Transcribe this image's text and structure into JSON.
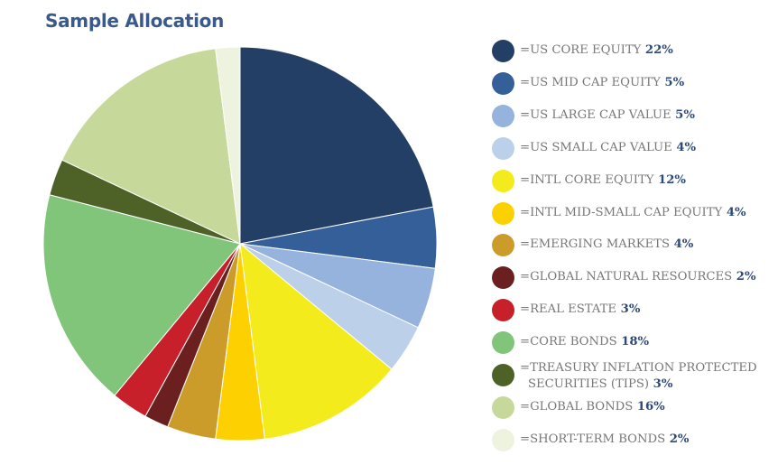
{
  "title": "Sample Allocation",
  "chart_data": {
    "type": "pie",
    "title": "Sample Allocation",
    "legend_position": "right",
    "slices": [
      {
        "label": "US CORE EQUITY",
        "value": 22,
        "value_label": "22%",
        "color": "#233f65"
      },
      {
        "label": "US MID CAP EQUITY",
        "value": 5,
        "value_label": "5%",
        "color": "#355f98"
      },
      {
        "label": "US LARGE CAP VALUE",
        "value": 5,
        "value_label": "5%",
        "color": "#95b3dc"
      },
      {
        "label": "US SMALL CAP VALUE",
        "value": 4,
        "value_label": "4%",
        "color": "#bcd0ea"
      },
      {
        "label": "INTL CORE EQUITY",
        "value": 12,
        "value_label": "12%",
        "color": "#f3eb1c"
      },
      {
        "label": "INTL MID-SMALL CAP EQUITY",
        "value": 4,
        "value_label": "4%",
        "color": "#fdd101"
      },
      {
        "label": "EMERGING MARKETS",
        "value": 4,
        "value_label": "4%",
        "color": "#cc9c2a"
      },
      {
        "label": "GLOBAL NATURAL RESOURCES",
        "value": 2,
        "value_label": "2%",
        "color": "#6b1f1f"
      },
      {
        "label": "REAL ESTATE",
        "value": 3,
        "value_label": "3%",
        "color": "#c8202a"
      },
      {
        "label": "CORE BONDS",
        "value": 18,
        "value_label": "18%",
        "color": "#80c57a"
      },
      {
        "label": "TREASURY INFLATION PROTECTED SECURITIES (TIPS)",
        "value": 3,
        "value_label": "3%",
        "color": "#4e6228"
      },
      {
        "label": "GLOBAL BONDS",
        "value": 16,
        "value_label": "16%",
        "color": "#c6d99b"
      },
      {
        "label": "SHORT-TERM BONDS",
        "value": 2,
        "value_label": "2%",
        "color": "#eef3e0"
      }
    ]
  },
  "legend": {
    "prefix": "="
  }
}
